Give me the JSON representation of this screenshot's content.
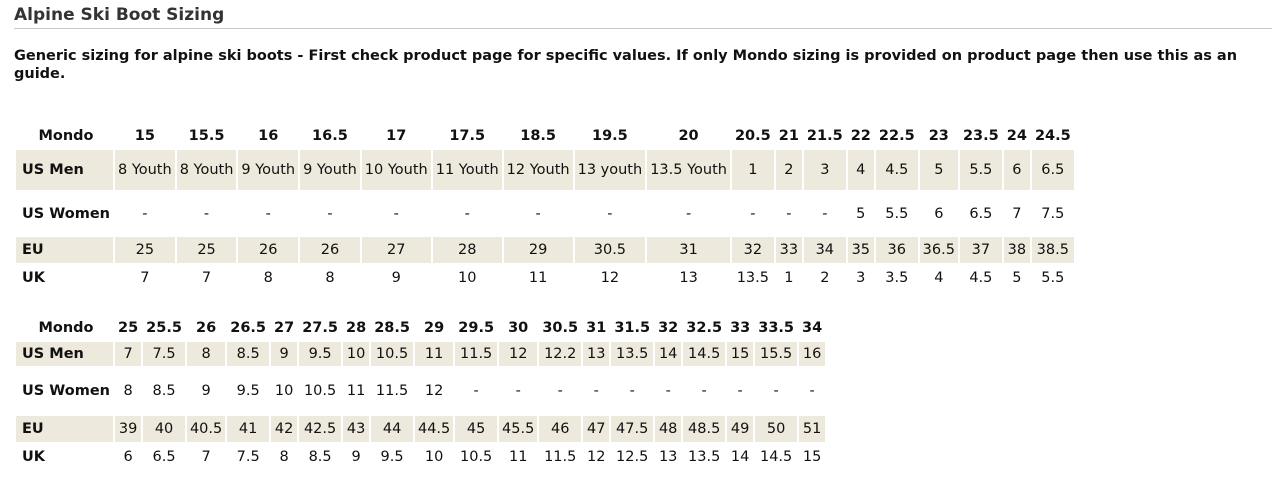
{
  "title": "Alpine Ski Boot Sizing",
  "intro": "Generic sizing for alpine ski boots - First check product page for specific values. If only Mondo sizing is provided on product page then use this as an guide.",
  "tables": [
    {
      "rows": [
        {
          "label": "Mondo",
          "cells": [
            "15",
            "15.5",
            "16",
            "16.5",
            "17",
            "17.5",
            "18.5",
            "19.5",
            "20",
            "20.5",
            "21",
            "21.5",
            "22",
            "22.5",
            "23",
            "23.5",
            "24",
            "24.5"
          ]
        },
        {
          "label": "US Men",
          "cells": [
            "8 Youth",
            "8 Youth",
            "9 Youth",
            "9 Youth",
            "10 Youth",
            "11 Youth",
            "12 Youth",
            "13 youth",
            "13.5 Youth",
            "1",
            "2",
            "3",
            "4",
            "4.5",
            "5",
            "5.5",
            "6",
            "6.5"
          ]
        },
        {
          "label": "US Women",
          "cells": [
            "-",
            "-",
            "-",
            "-",
            "-",
            "-",
            "-",
            "-",
            "-",
            "-",
            "-",
            "-",
            "5",
            "5.5",
            "6",
            "6.5",
            "7",
            "7.5"
          ]
        },
        {
          "label": "EU",
          "cells": [
            "25",
            "25",
            "26",
            "26",
            "27",
            "28",
            "29",
            "30.5",
            "31",
            "32",
            "33",
            "34",
            "35",
            "36",
            "36.5",
            "37",
            "38",
            "38.5"
          ]
        },
        {
          "label": "UK",
          "cells": [
            "7",
            "7",
            "8",
            "8",
            "9",
            "10",
            "11",
            "12",
            "13",
            "13.5",
            "1",
            "2",
            "3",
            "3.5",
            "4",
            "4.5",
            "5",
            "5.5"
          ]
        }
      ]
    },
    {
      "rows": [
        {
          "label": "Mondo",
          "cells": [
            "25",
            "25.5",
            "26",
            "26.5",
            "27",
            "27.5",
            "28",
            "28.5",
            "29",
            "29.5",
            "30",
            "30.5",
            "31",
            "31.5",
            "32",
            "32.5",
            "33",
            "33.5",
            "34"
          ]
        },
        {
          "label": "US Men",
          "cells": [
            "7",
            "7.5",
            "8",
            "8.5",
            "9",
            "9.5",
            "10",
            "10.5",
            "11",
            "11.5",
            "12",
            "12.2",
            "13",
            "13.5",
            "14",
            "14.5",
            "15",
            "15.5",
            "16"
          ]
        },
        {
          "label": "US Women",
          "cells": [
            "8",
            "8.5",
            "9",
            "9.5",
            "10",
            "10.5",
            "11",
            "11.5",
            "12",
            "-",
            "-",
            "-",
            "-",
            "-",
            "-",
            "-",
            "-",
            "-",
            "-"
          ]
        },
        {
          "label": "EU",
          "cells": [
            "39",
            "40",
            "40.5",
            "41",
            "42",
            "42.5",
            "43",
            "44",
            "44.5",
            "45",
            "45.5",
            "46",
            "47",
            "47.5",
            "48",
            "48.5",
            "49",
            "50",
            "51"
          ]
        },
        {
          "label": "UK",
          "cells": [
            "6",
            "6.5",
            "7",
            "7.5",
            "8",
            "8.5",
            "9",
            "9.5",
            "10",
            "10.5",
            "11",
            "11.5",
            "12",
            "12.5",
            "13",
            "13.5",
            "14",
            "14.5",
            "15"
          ]
        }
      ]
    }
  ]
}
